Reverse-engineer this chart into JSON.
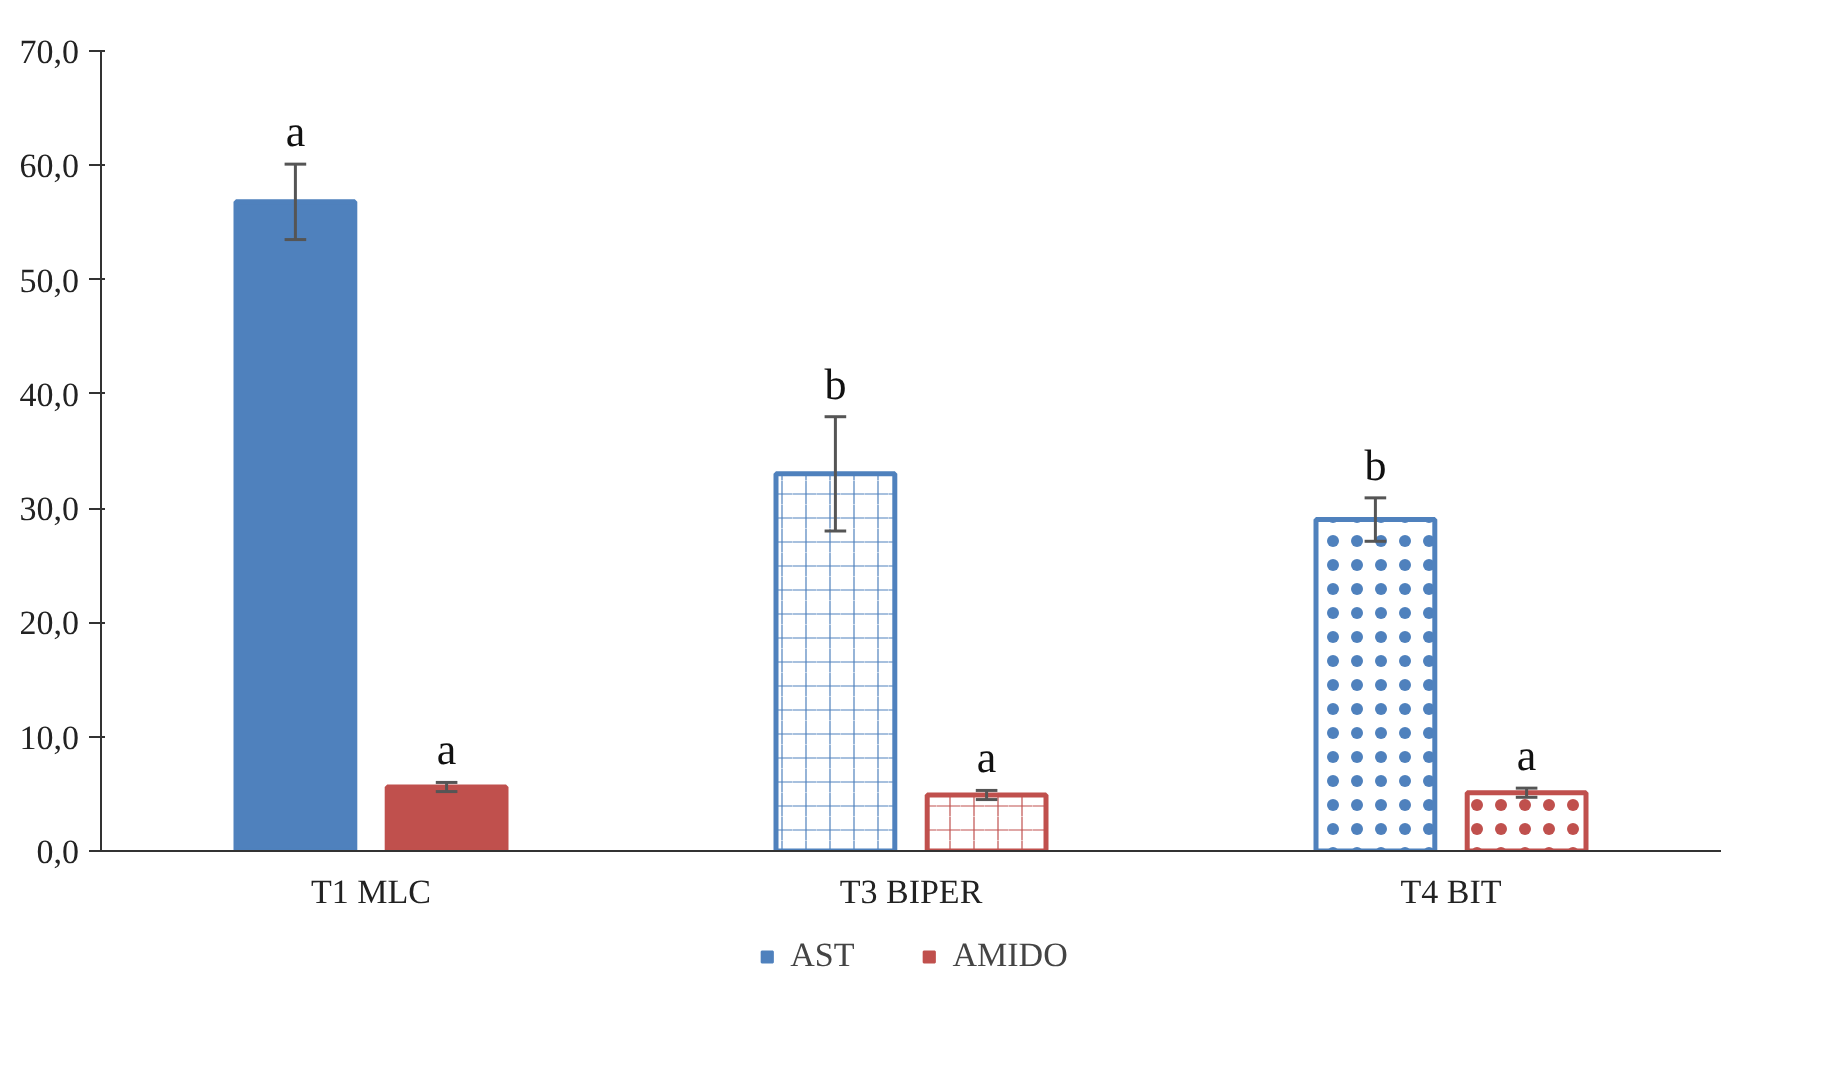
{
  "chart_data": {
    "type": "bar",
    "categories": [
      "T1 MLC",
      "T3 BIPER",
      "T4 BIT"
    ],
    "series": [
      {
        "name": "AST",
        "color": "#4f81bd",
        "values": [
          56.8,
          33.0,
          29.0
        ],
        "errors": [
          3.3,
          5.0,
          1.9
        ],
        "value_labels": [
          "a",
          "b",
          "b"
        ]
      },
      {
        "name": "AMIDO",
        "color": "#c0504d",
        "values": [
          5.6,
          4.9,
          5.1
        ],
        "errors": [
          0.4,
          0.4,
          0.4
        ],
        "value_labels": [
          "a",
          "a",
          "a"
        ]
      }
    ],
    "ylim": [
      0,
      70
    ],
    "yticks": [
      {
        "value": 0,
        "label": "0,0"
      },
      {
        "value": 10,
        "label": "10,0"
      },
      {
        "value": 20,
        "label": "20,0"
      },
      {
        "value": 30,
        "label": "30,0"
      },
      {
        "value": 40,
        "label": "40,0"
      },
      {
        "value": 50,
        "label": "50,0"
      },
      {
        "value": 60,
        "label": "60,0"
      },
      {
        "value": 70,
        "label": "70,0"
      }
    ],
    "grid": false,
    "legend": "bottom"
  }
}
